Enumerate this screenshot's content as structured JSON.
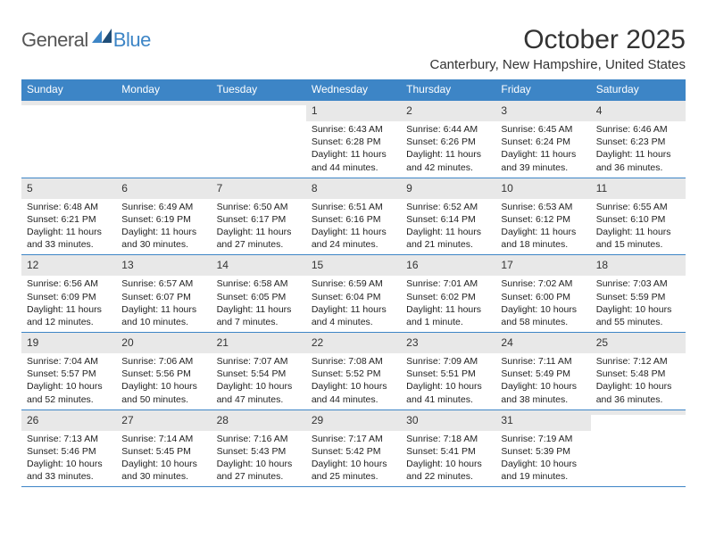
{
  "logo": {
    "word1": "General",
    "word2": "Blue"
  },
  "title": "October 2025",
  "location": "Canterbury, New Hampshire, United States",
  "colors": {
    "accent": "#3d85c6",
    "header_text": "#ffffff",
    "daynum_bg": "#e8e8e8",
    "body_text": "#222222",
    "page_bg": "#ffffff"
  },
  "weekdays": [
    "Sunday",
    "Monday",
    "Tuesday",
    "Wednesday",
    "Thursday",
    "Friday",
    "Saturday"
  ],
  "weeks": [
    [
      {
        "empty": true
      },
      {
        "empty": true
      },
      {
        "empty": true
      },
      {
        "n": "1",
        "sunrise": "Sunrise: 6:43 AM",
        "sunset": "Sunset: 6:28 PM",
        "daylight1": "Daylight: 11 hours",
        "daylight2": "and 44 minutes."
      },
      {
        "n": "2",
        "sunrise": "Sunrise: 6:44 AM",
        "sunset": "Sunset: 6:26 PM",
        "daylight1": "Daylight: 11 hours",
        "daylight2": "and 42 minutes."
      },
      {
        "n": "3",
        "sunrise": "Sunrise: 6:45 AM",
        "sunset": "Sunset: 6:24 PM",
        "daylight1": "Daylight: 11 hours",
        "daylight2": "and 39 minutes."
      },
      {
        "n": "4",
        "sunrise": "Sunrise: 6:46 AM",
        "sunset": "Sunset: 6:23 PM",
        "daylight1": "Daylight: 11 hours",
        "daylight2": "and 36 minutes."
      }
    ],
    [
      {
        "n": "5",
        "sunrise": "Sunrise: 6:48 AM",
        "sunset": "Sunset: 6:21 PM",
        "daylight1": "Daylight: 11 hours",
        "daylight2": "and 33 minutes."
      },
      {
        "n": "6",
        "sunrise": "Sunrise: 6:49 AM",
        "sunset": "Sunset: 6:19 PM",
        "daylight1": "Daylight: 11 hours",
        "daylight2": "and 30 minutes."
      },
      {
        "n": "7",
        "sunrise": "Sunrise: 6:50 AM",
        "sunset": "Sunset: 6:17 PM",
        "daylight1": "Daylight: 11 hours",
        "daylight2": "and 27 minutes."
      },
      {
        "n": "8",
        "sunrise": "Sunrise: 6:51 AM",
        "sunset": "Sunset: 6:16 PM",
        "daylight1": "Daylight: 11 hours",
        "daylight2": "and 24 minutes."
      },
      {
        "n": "9",
        "sunrise": "Sunrise: 6:52 AM",
        "sunset": "Sunset: 6:14 PM",
        "daylight1": "Daylight: 11 hours",
        "daylight2": "and 21 minutes."
      },
      {
        "n": "10",
        "sunrise": "Sunrise: 6:53 AM",
        "sunset": "Sunset: 6:12 PM",
        "daylight1": "Daylight: 11 hours",
        "daylight2": "and 18 minutes."
      },
      {
        "n": "11",
        "sunrise": "Sunrise: 6:55 AM",
        "sunset": "Sunset: 6:10 PM",
        "daylight1": "Daylight: 11 hours",
        "daylight2": "and 15 minutes."
      }
    ],
    [
      {
        "n": "12",
        "sunrise": "Sunrise: 6:56 AM",
        "sunset": "Sunset: 6:09 PM",
        "daylight1": "Daylight: 11 hours",
        "daylight2": "and 12 minutes."
      },
      {
        "n": "13",
        "sunrise": "Sunrise: 6:57 AM",
        "sunset": "Sunset: 6:07 PM",
        "daylight1": "Daylight: 11 hours",
        "daylight2": "and 10 minutes."
      },
      {
        "n": "14",
        "sunrise": "Sunrise: 6:58 AM",
        "sunset": "Sunset: 6:05 PM",
        "daylight1": "Daylight: 11 hours",
        "daylight2": "and 7 minutes."
      },
      {
        "n": "15",
        "sunrise": "Sunrise: 6:59 AM",
        "sunset": "Sunset: 6:04 PM",
        "daylight1": "Daylight: 11 hours",
        "daylight2": "and 4 minutes."
      },
      {
        "n": "16",
        "sunrise": "Sunrise: 7:01 AM",
        "sunset": "Sunset: 6:02 PM",
        "daylight1": "Daylight: 11 hours",
        "daylight2": "and 1 minute."
      },
      {
        "n": "17",
        "sunrise": "Sunrise: 7:02 AM",
        "sunset": "Sunset: 6:00 PM",
        "daylight1": "Daylight: 10 hours",
        "daylight2": "and 58 minutes."
      },
      {
        "n": "18",
        "sunrise": "Sunrise: 7:03 AM",
        "sunset": "Sunset: 5:59 PM",
        "daylight1": "Daylight: 10 hours",
        "daylight2": "and 55 minutes."
      }
    ],
    [
      {
        "n": "19",
        "sunrise": "Sunrise: 7:04 AM",
        "sunset": "Sunset: 5:57 PM",
        "daylight1": "Daylight: 10 hours",
        "daylight2": "and 52 minutes."
      },
      {
        "n": "20",
        "sunrise": "Sunrise: 7:06 AM",
        "sunset": "Sunset: 5:56 PM",
        "daylight1": "Daylight: 10 hours",
        "daylight2": "and 50 minutes."
      },
      {
        "n": "21",
        "sunrise": "Sunrise: 7:07 AM",
        "sunset": "Sunset: 5:54 PM",
        "daylight1": "Daylight: 10 hours",
        "daylight2": "and 47 minutes."
      },
      {
        "n": "22",
        "sunrise": "Sunrise: 7:08 AM",
        "sunset": "Sunset: 5:52 PM",
        "daylight1": "Daylight: 10 hours",
        "daylight2": "and 44 minutes."
      },
      {
        "n": "23",
        "sunrise": "Sunrise: 7:09 AM",
        "sunset": "Sunset: 5:51 PM",
        "daylight1": "Daylight: 10 hours",
        "daylight2": "and 41 minutes."
      },
      {
        "n": "24",
        "sunrise": "Sunrise: 7:11 AM",
        "sunset": "Sunset: 5:49 PM",
        "daylight1": "Daylight: 10 hours",
        "daylight2": "and 38 minutes."
      },
      {
        "n": "25",
        "sunrise": "Sunrise: 7:12 AM",
        "sunset": "Sunset: 5:48 PM",
        "daylight1": "Daylight: 10 hours",
        "daylight2": "and 36 minutes."
      }
    ],
    [
      {
        "n": "26",
        "sunrise": "Sunrise: 7:13 AM",
        "sunset": "Sunset: 5:46 PM",
        "daylight1": "Daylight: 10 hours",
        "daylight2": "and 33 minutes."
      },
      {
        "n": "27",
        "sunrise": "Sunrise: 7:14 AM",
        "sunset": "Sunset: 5:45 PM",
        "daylight1": "Daylight: 10 hours",
        "daylight2": "and 30 minutes."
      },
      {
        "n": "28",
        "sunrise": "Sunrise: 7:16 AM",
        "sunset": "Sunset: 5:43 PM",
        "daylight1": "Daylight: 10 hours",
        "daylight2": "and 27 minutes."
      },
      {
        "n": "29",
        "sunrise": "Sunrise: 7:17 AM",
        "sunset": "Sunset: 5:42 PM",
        "daylight1": "Daylight: 10 hours",
        "daylight2": "and 25 minutes."
      },
      {
        "n": "30",
        "sunrise": "Sunrise: 7:18 AM",
        "sunset": "Sunset: 5:41 PM",
        "daylight1": "Daylight: 10 hours",
        "daylight2": "and 22 minutes."
      },
      {
        "n": "31",
        "sunrise": "Sunrise: 7:19 AM",
        "sunset": "Sunset: 5:39 PM",
        "daylight1": "Daylight: 10 hours",
        "daylight2": "and 19 minutes."
      },
      {
        "empty": true
      }
    ]
  ]
}
